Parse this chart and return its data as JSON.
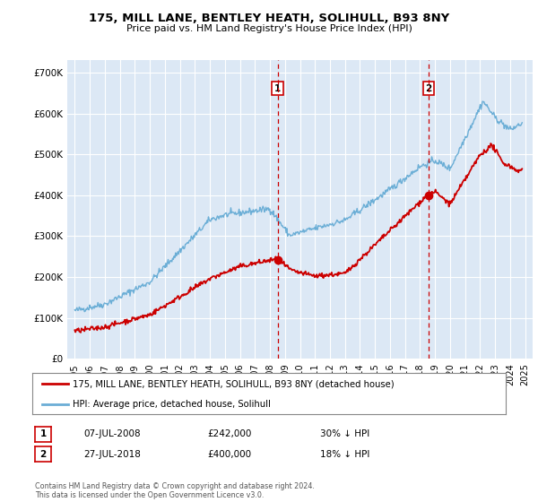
{
  "title": "175, MILL LANE, BENTLEY HEATH, SOLIHULL, B93 8NY",
  "subtitle": "Price paid vs. HM Land Registry's House Price Index (HPI)",
  "legend_line1": "175, MILL LANE, BENTLEY HEATH, SOLIHULL, B93 8NY (detached house)",
  "legend_line2": "HPI: Average price, detached house, Solihull",
  "footnote": "Contains HM Land Registry data © Crown copyright and database right 2024.\nThis data is licensed under the Open Government Licence v3.0.",
  "transaction1": {
    "label": "1",
    "date": "07-JUL-2008",
    "price": "£242,000",
    "change": "30% ↓ HPI"
  },
  "transaction2": {
    "label": "2",
    "date": "27-JUL-2018",
    "price": "£400,000",
    "change": "18% ↓ HPI"
  },
  "vline1_x": 2008.52,
  "vline2_x": 2018.57,
  "hpi_color": "#6baed6",
  "price_color": "#cc0000",
  "vline_color": "#cc0000",
  "background_color": "#dce8f5",
  "ylim": [
    0,
    730000
  ],
  "xlim": [
    1994.5,
    2025.5
  ]
}
